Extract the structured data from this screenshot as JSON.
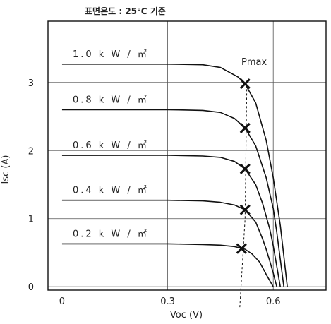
{
  "chart_data": {
    "type": "line",
    "title": "표면온도 : 25℃ 기준",
    "xlabel": "Voc (V)",
    "ylabel": "Isc (A)",
    "xlim": [
      -0.04,
      0.75
    ],
    "ylim": [
      -0.05,
      3.9
    ],
    "xticks": [
      0,
      0.3,
      0.6
    ],
    "xtick_labels": [
      "0",
      "0.3",
      "0.6"
    ],
    "yticks": [
      0,
      1,
      2,
      3
    ],
    "ytick_labels": [
      "0",
      "1",
      "2",
      "3"
    ],
    "grid": true,
    "series": [
      {
        "name": "1.0 k W / ㎡",
        "isc": 3.27,
        "voc": 0.64,
        "x": [
          0,
          0.3,
          0.4,
          0.45,
          0.5,
          0.52,
          0.55,
          0.58,
          0.6,
          0.62,
          0.63,
          0.64
        ],
        "y": [
          3.27,
          3.27,
          3.26,
          3.22,
          3.08,
          2.98,
          2.7,
          2.15,
          1.6,
          0.9,
          0.45,
          0.0
        ]
      },
      {
        "name": "0.8 k W / ㎡",
        "isc": 2.6,
        "voc": 0.63,
        "x": [
          0,
          0.3,
          0.4,
          0.45,
          0.49,
          0.52,
          0.55,
          0.58,
          0.6,
          0.61,
          0.62,
          0.63
        ],
        "y": [
          2.6,
          2.6,
          2.59,
          2.56,
          2.47,
          2.33,
          2.07,
          1.6,
          1.15,
          0.8,
          0.4,
          0.0
        ]
      },
      {
        "name": "0.6 k W / ㎡",
        "isc": 1.93,
        "voc": 0.62,
        "x": [
          0,
          0.3,
          0.4,
          0.45,
          0.49,
          0.52,
          0.55,
          0.57,
          0.59,
          0.6,
          0.61,
          0.62
        ],
        "y": [
          1.93,
          1.93,
          1.92,
          1.9,
          1.84,
          1.73,
          1.5,
          1.22,
          0.85,
          0.6,
          0.3,
          0.0
        ]
      },
      {
        "name": "0.4 k W / ㎡",
        "isc": 1.27,
        "voc": 0.61,
        "x": [
          0,
          0.3,
          0.4,
          0.45,
          0.49,
          0.52,
          0.55,
          0.57,
          0.58,
          0.59,
          0.6,
          0.61
        ],
        "y": [
          1.27,
          1.27,
          1.26,
          1.24,
          1.2,
          1.13,
          0.95,
          0.7,
          0.55,
          0.38,
          0.2,
          0.0
        ]
      },
      {
        "name": "0.2 k W / ㎡",
        "isc": 0.63,
        "voc": 0.6,
        "x": [
          0,
          0.3,
          0.4,
          0.45,
          0.49,
          0.52,
          0.54,
          0.56,
          0.57,
          0.58,
          0.59,
          0.6
        ],
        "y": [
          0.63,
          0.63,
          0.62,
          0.61,
          0.59,
          0.55,
          0.48,
          0.37,
          0.28,
          0.18,
          0.09,
          0.0
        ]
      }
    ],
    "pmax_points": [
      {
        "x": 0.52,
        "y": 2.98
      },
      {
        "x": 0.52,
        "y": 2.33
      },
      {
        "x": 0.52,
        "y": 1.73
      },
      {
        "x": 0.52,
        "y": 1.13
      },
      {
        "x": 0.51,
        "y": 0.56
      }
    ],
    "pmax_label": "Pmax",
    "pmax_line": {
      "x": [
        0.505,
        0.52,
        0.525
      ],
      "y": [
        -0.3,
        1.0,
        3.0
      ]
    },
    "colors": {
      "line": "#111111",
      "grid": "#555555",
      "background": "#ffffff"
    }
  }
}
